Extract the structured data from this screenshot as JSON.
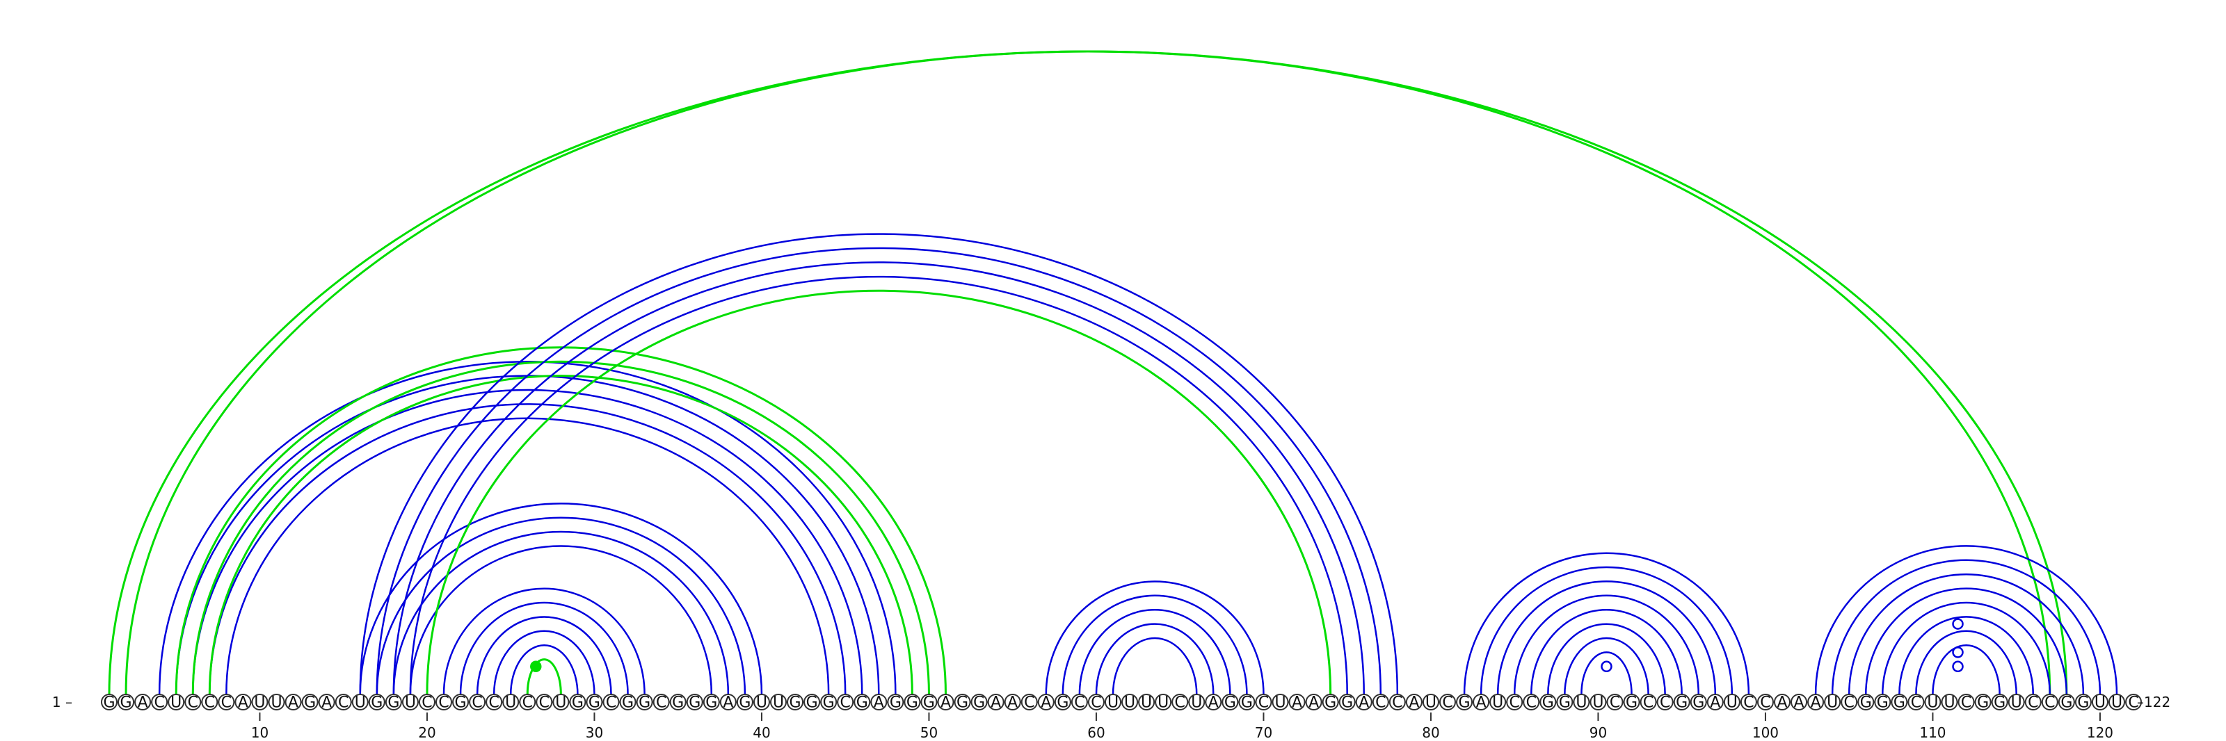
{
  "sequence": "GGACUCCCAUUAGACUGGUCCGCCUCCUGGCGGCGGGAGUUGGGCGAGGGAGGAACAGCCUUUUCUAGGCUAAGGACCAUCGAUCCGGUUCGCCGGAUCCAAAUCGGGCUUCGGUCCGGUUC",
  "start_label": "1",
  "end_label": "122",
  "ticks": [
    10,
    20,
    30,
    40,
    50,
    60,
    70,
    80,
    90,
    100,
    110,
    120
  ],
  "colors": {
    "blue": "#0000dd",
    "green": "#00dd00"
  },
  "arc_groups": [
    {
      "color": "blue",
      "pairs": [
        [
          25,
          29
        ],
        [
          24,
          30
        ],
        [
          23,
          31
        ],
        [
          22,
          32
        ],
        [
          21,
          33
        ]
      ]
    },
    {
      "color": "green",
      "pairs": [
        [
          26,
          28
        ]
      ]
    },
    {
      "color": "blue",
      "pairs": [
        [
          16,
          40
        ],
        [
          17,
          39
        ],
        [
          18,
          38
        ],
        [
          19,
          37
        ]
      ]
    },
    {
      "color": "blue",
      "pairs": [
        [
          4,
          48
        ],
        [
          5,
          47
        ],
        [
          6,
          46
        ],
        [
          7,
          45
        ],
        [
          8,
          44
        ]
      ]
    },
    {
      "color": "green",
      "pairs": [
        [
          5,
          51
        ],
        [
          6,
          50
        ],
        [
          7,
          49
        ]
      ]
    },
    {
      "color": "blue",
      "pairs": [
        [
          16,
          78
        ],
        [
          17,
          77
        ],
        [
          18,
          76
        ],
        [
          19,
          75
        ]
      ]
    },
    {
      "color": "green",
      "pairs": [
        [
          20,
          74
        ]
      ]
    },
    {
      "color": "green",
      "pairs": [
        [
          1,
          118
        ],
        [
          2,
          117
        ]
      ]
    },
    {
      "color": "blue",
      "pairs": [
        [
          57,
          70
        ],
        [
          58,
          69
        ],
        [
          59,
          68
        ],
        [
          60,
          67
        ],
        [
          61,
          66
        ]
      ]
    },
    {
      "color": "blue",
      "pairs": [
        [
          82,
          99
        ],
        [
          83,
          98
        ],
        [
          84,
          97
        ],
        [
          85,
          96
        ],
        [
          86,
          95
        ],
        [
          87,
          94
        ],
        [
          88,
          93
        ],
        [
          89,
          92
        ]
      ]
    },
    {
      "color": "blue",
      "pairs": [
        [
          103,
          121
        ],
        [
          104,
          120
        ],
        [
          105,
          119
        ],
        [
          106,
          118
        ],
        [
          107,
          117
        ],
        [
          108,
          116
        ],
        [
          109,
          115
        ],
        [
          110,
          114
        ]
      ]
    }
  ],
  "markers": [
    {
      "position": 26.5,
      "level": 1,
      "color": "green",
      "filled": true
    },
    {
      "position": 90.5,
      "level": 1,
      "color": "blue",
      "filled": false
    },
    {
      "position": 111.5,
      "level": 1,
      "color": "blue",
      "filled": false
    },
    {
      "position": 111.5,
      "level": 3,
      "color": "blue",
      "filled": false
    },
    {
      "position": 111.5,
      "level": 7,
      "color": "blue",
      "filled": false
    }
  ]
}
